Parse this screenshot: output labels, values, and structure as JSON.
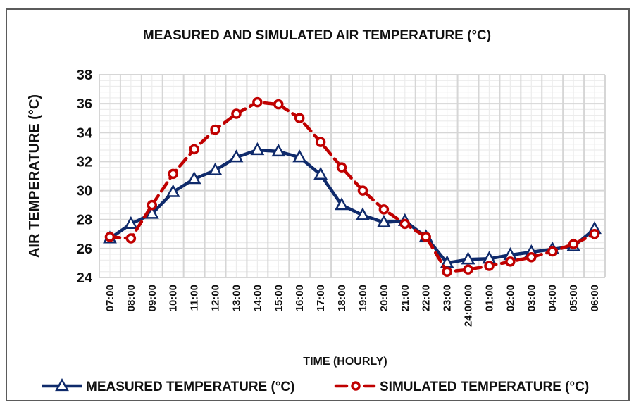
{
  "chart_data": {
    "type": "line",
    "title": "MEASURED AND SIMULATED AIR TEMPERATURE (°C)",
    "xlabel": "TIME (HOURLY)",
    "ylabel": "AIR TEMPERATURE (°C)",
    "ylim": [
      24,
      38
    ],
    "yticks": [
      24,
      26,
      28,
      30,
      32,
      34,
      36,
      38
    ],
    "grid": true,
    "legend_position": "bottom",
    "categories": [
      "07:00",
      "08:00",
      "09:00",
      "10:00",
      "11:00",
      "12:00",
      "13:00",
      "14:00",
      "15:00",
      "16:00",
      "17:00",
      "18:00",
      "19:00",
      "20:00",
      "21:00",
      "22:00",
      "23:00",
      "24:00:00",
      "01:00",
      "02:00",
      "03:00",
      "04:00",
      "05:00",
      "06:00"
    ],
    "series": [
      {
        "name": "MEASURED TEMPERATURE (°C)",
        "color": "#0f2a6b",
        "line_style": "solid",
        "marker": "triangle",
        "values": [
          26.7,
          27.7,
          28.4,
          29.9,
          30.8,
          31.4,
          32.3,
          32.8,
          32.7,
          32.3,
          31.1,
          29.0,
          28.3,
          27.8,
          27.9,
          26.8,
          25.0,
          25.25,
          25.3,
          25.55,
          25.75,
          25.95,
          26.15,
          27.35
        ]
      },
      {
        "name": "SIMULATED TEMPERATURE (°C)",
        "color": "#c00000",
        "line_style": "dashed",
        "marker": "circle",
        "values": [
          26.8,
          26.7,
          29.0,
          31.15,
          32.85,
          34.2,
          35.3,
          36.1,
          35.95,
          35.0,
          33.35,
          31.6,
          30.0,
          28.7,
          27.7,
          26.8,
          24.4,
          24.55,
          24.8,
          25.1,
          25.4,
          25.8,
          26.3,
          27.0
        ]
      }
    ]
  }
}
